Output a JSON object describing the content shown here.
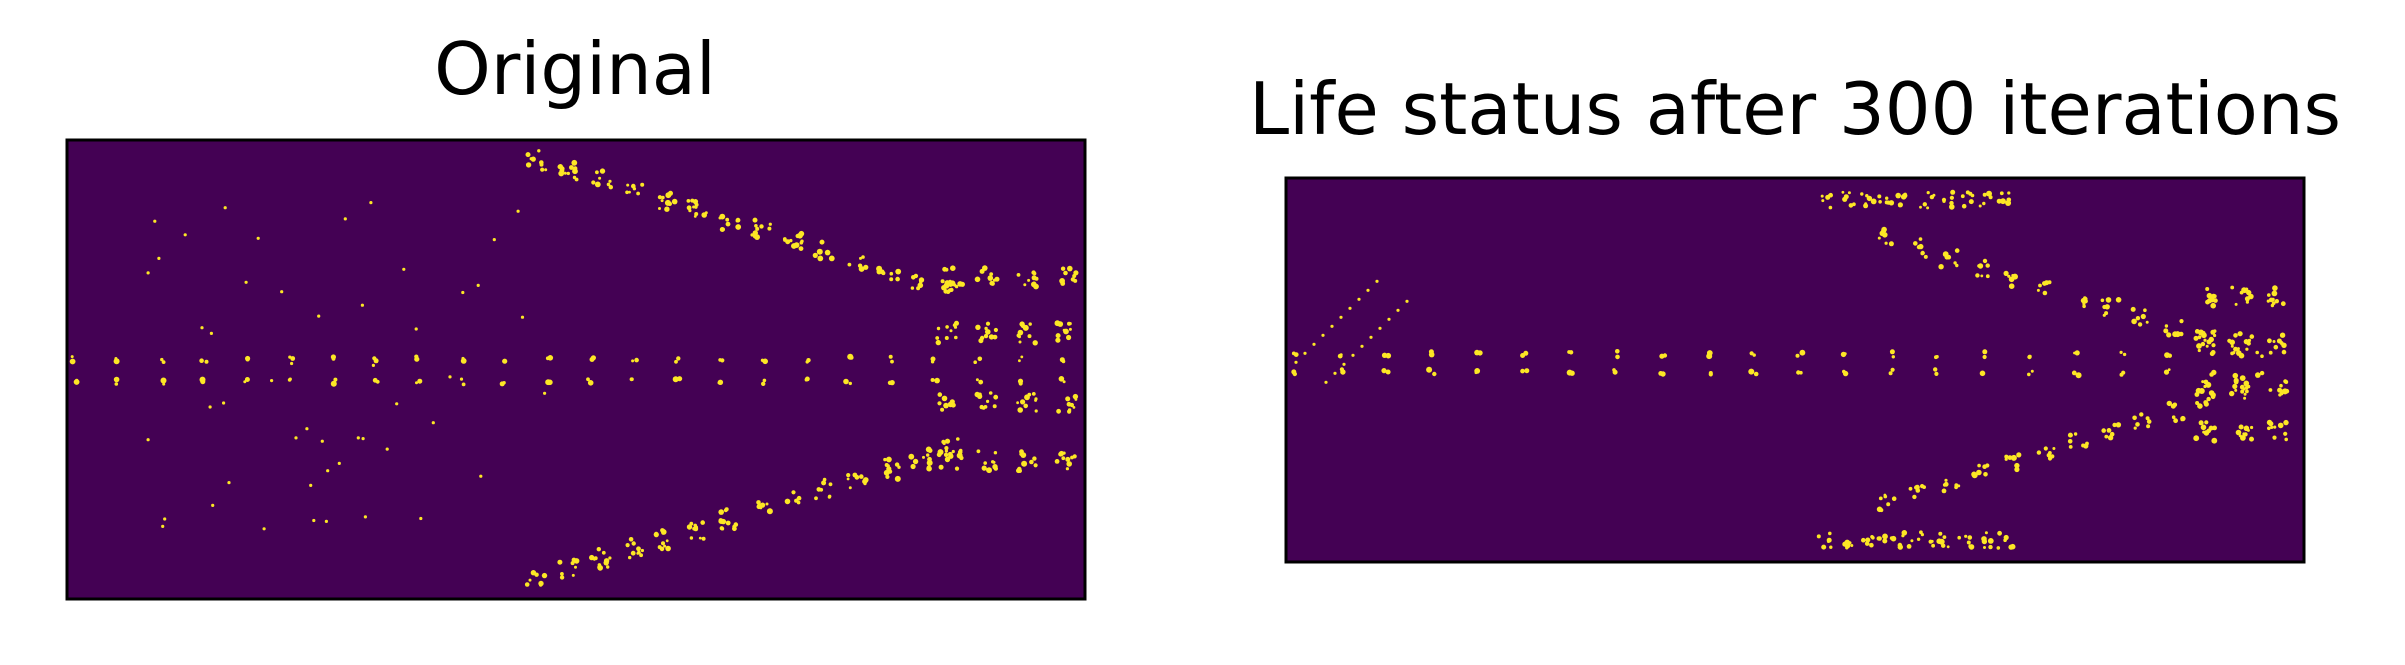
{
  "figure": {
    "background": "#ffffff",
    "dead_color": "#440154",
    "alive_color": "#fde725",
    "frame_color": "#000000"
  },
  "chart_data": [
    {
      "type": "heatmap",
      "title": "Original",
      "xlabel": "",
      "ylabel": "",
      "colormap": "viridis",
      "values": [
        "dead",
        "alive"
      ],
      "axes_ticks": false,
      "grid": false,
      "legend": "none"
    },
    {
      "type": "heatmap",
      "title": "Life status after 300 iterations",
      "xlabel": "",
      "ylabel": "",
      "colormap": "viridis",
      "values": [
        "dead",
        "alive"
      ],
      "axes_ticks": false,
      "grid": false,
      "legend": "none"
    }
  ]
}
